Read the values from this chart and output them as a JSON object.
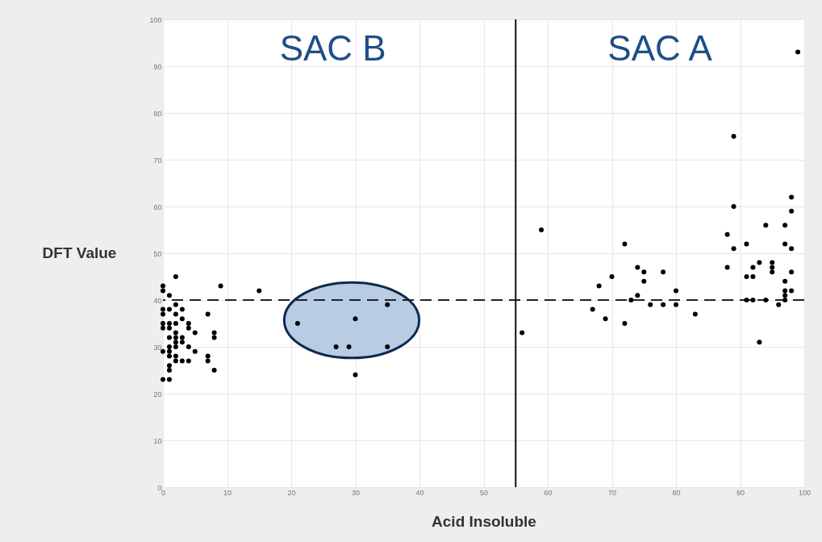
{
  "chart_data": {
    "type": "scatter",
    "xlabel": "Acid Insoluble",
    "ylabel": "DFT Value",
    "xlim": [
      0,
      100
    ],
    "xticks": [
      0,
      10,
      20,
      30,
      40,
      50,
      60,
      70,
      80,
      90,
      100
    ],
    "ylim": [
      0,
      100
    ],
    "yticks": [
      0,
      10,
      20,
      30,
      40,
      50,
      60,
      70,
      80,
      90,
      100
    ],
    "grid": true,
    "marker": "circle",
    "annotations": [
      "SAC B",
      "SAC A"
    ],
    "ref_lines": [
      {
        "axis": "y",
        "value": 40,
        "color": "#222222",
        "line_style": "dashed"
      },
      {
        "axis": "x",
        "value": 55,
        "color": "#111111",
        "line_style": "solid"
      }
    ],
    "series": [
      {
        "color": "#000000",
        "x": [
          0,
          0,
          1,
          2,
          0,
          0,
          1,
          2,
          2,
          3,
          3,
          0,
          0,
          1,
          1,
          2,
          4,
          1,
          2,
          2,
          3,
          4,
          5,
          1,
          1,
          2,
          2,
          3,
          4,
          0,
          5,
          1,
          2,
          3,
          4,
          1,
          2,
          0,
          1,
          1,
          7,
          7,
          7,
          8,
          8,
          8,
          9,
          15,
          21,
          27,
          29,
          30,
          35,
          35,
          30,
          56,
          59,
          67,
          68,
          69,
          70,
          72,
          72,
          73,
          74,
          74,
          75,
          75,
          76,
          78,
          78,
          80,
          80,
          83,
          99,
          89,
          88,
          89,
          89,
          88,
          91,
          91,
          92,
          92,
          93,
          94,
          95,
          95,
          95,
          97,
          97,
          98,
          98,
          98,
          98,
          98,
          97,
          97,
          97,
          97,
          96,
          91,
          92,
          94,
          93
        ],
        "values": [
          43,
          42,
          41,
          45,
          38,
          37,
          38,
          39,
          37,
          38,
          36,
          35,
          34,
          35,
          34,
          35,
          35,
          32,
          33,
          32,
          32,
          34,
          33,
          30,
          29,
          30,
          31,
          31,
          30,
          29,
          29,
          28,
          28,
          27,
          27,
          26,
          27,
          23,
          23,
          25,
          37,
          28,
          27,
          33,
          32,
          25,
          43,
          42,
          35,
          30,
          30,
          36,
          39,
          30,
          24,
          33,
          55,
          38,
          43,
          36,
          45,
          52,
          35,
          40,
          47,
          41,
          46,
          44,
          39,
          46,
          39,
          42,
          39,
          37,
          93,
          75,
          54,
          60,
          51,
          47,
          52,
          45,
          45,
          47,
          48,
          56,
          47,
          46,
          48,
          56,
          52,
          62,
          59,
          51,
          46,
          42,
          44,
          42,
          41,
          40,
          39,
          40,
          40,
          40,
          31
        ]
      }
    ]
  }
}
